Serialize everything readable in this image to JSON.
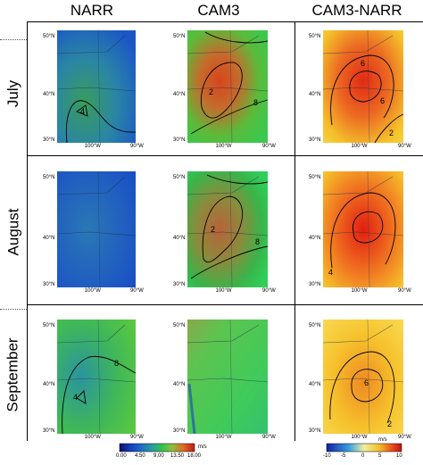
{
  "columns": [
    "NARR",
    "CAM3",
    "CAM3-NARR"
  ],
  "rows": [
    "July",
    "August",
    "September"
  ],
  "panel_axis_labels": {
    "lat_top": "50°N",
    "lat_mid": "40°N",
    "lat_bottom": "30°N",
    "lon_left": "100°W",
    "lon_right": "90°W"
  },
  "contour_labels": {
    "july": {
      "narr": [
        "4"
      ],
      "cam3": [
        "2",
        "8"
      ],
      "diff": [
        "6",
        "6",
        "2"
      ]
    },
    "august": {
      "narr": [],
      "cam3": [
        "2",
        "8"
      ],
      "diff": [
        "4"
      ]
    },
    "september": {
      "narr": [
        "8",
        "4"
      ],
      "cam3": [],
      "diff": [
        "6",
        "2"
      ]
    }
  },
  "colorbar_main": {
    "ticks": [
      "0.00",
      "4.50",
      "9.00",
      "13.50",
      "18.00"
    ],
    "unit": "m/s"
  },
  "colorbar_diff": {
    "ticks": [
      "-10",
      "-5",
      "0",
      "5",
      "10"
    ],
    "unit": "m/s"
  },
  "colors": {
    "low": "#1a3fbf",
    "mid": "#22a64a",
    "high": "#d83a1c",
    "warm": "#f5c92b"
  }
}
